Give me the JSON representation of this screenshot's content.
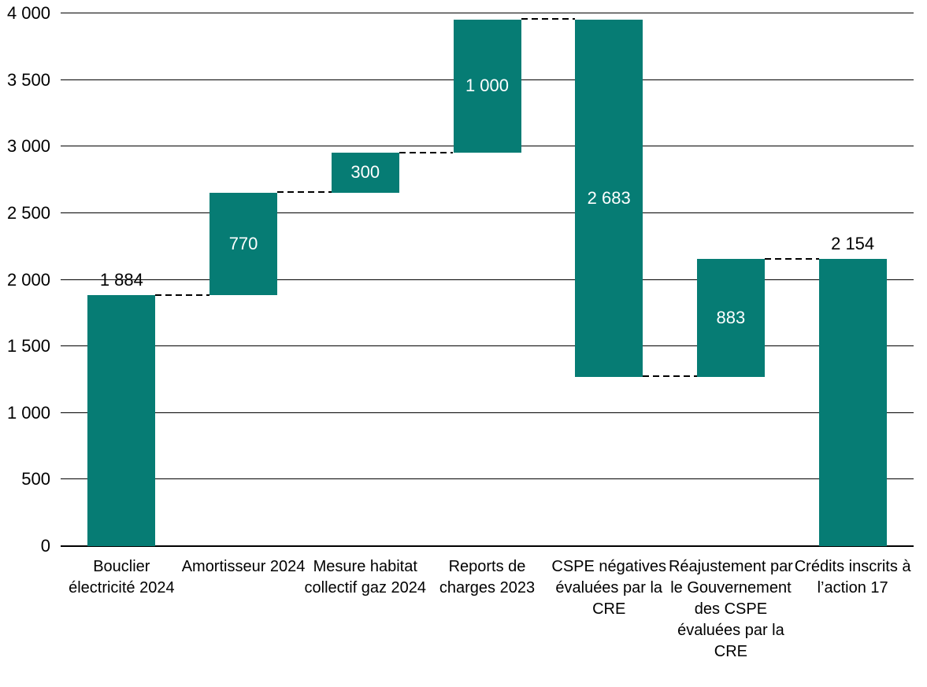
{
  "chart_data": {
    "type": "bar",
    "subtype": "waterfall",
    "title": "",
    "xlabel": "",
    "ylabel": "",
    "ylim": [
      0,
      4000
    ],
    "ytick_step": 500,
    "grid": true,
    "legend": false,
    "yticks": [
      {
        "value": 0,
        "label": "0"
      },
      {
        "value": 500,
        "label": "500"
      },
      {
        "value": 1000,
        "label": "1 000"
      },
      {
        "value": 1500,
        "label": "1 500"
      },
      {
        "value": 2000,
        "label": "2 000"
      },
      {
        "value": 2500,
        "label": "2 500"
      },
      {
        "value": 3000,
        "label": "3 000"
      },
      {
        "value": 3500,
        "label": "3 500"
      },
      {
        "value": 4000,
        "label": "4 000"
      }
    ],
    "categories": [
      "Bouclier électricité 2024",
      "Amortisseur 2024",
      "Mesure habitat collectif gaz 2024",
      "Reports de charges 2023",
      "CSPE négatives évaluées par la CRE",
      "Réajustement par le Gouvernement des CSPE évaluées par la CRE",
      "Crédits inscrits à l’action 17"
    ],
    "bars": [
      {
        "category": "Bouclier électricité 2024",
        "start": 0,
        "end": 1884,
        "delta": 1884,
        "label": "1 884",
        "label_placement": "above"
      },
      {
        "category": "Amortisseur 2024",
        "start": 1884,
        "end": 2654,
        "delta": 770,
        "label": "770",
        "label_placement": "inside"
      },
      {
        "category": "Mesure habitat collectif gaz 2024",
        "start": 2654,
        "end": 2954,
        "delta": 300,
        "label": "300",
        "label_placement": "inside"
      },
      {
        "category": "Reports de charges 2023",
        "start": 2954,
        "end": 3954,
        "delta": 1000,
        "label": "1 000",
        "label_placement": "inside"
      },
      {
        "category": "CSPE négatives évaluées par la CRE",
        "start": 3954,
        "end": 1271,
        "delta": -2683,
        "label": "2 683",
        "label_placement": "inside"
      },
      {
        "category": "Réajustement par le Gouvernement des CSPE évaluées par la CRE",
        "start": 1271,
        "end": 2154,
        "delta": 883,
        "label": "883",
        "label_placement": "inside"
      },
      {
        "category": "Crédits inscrits à l’action 17",
        "start": 0,
        "end": 2154,
        "delta": 2154,
        "label": "2 154",
        "label_placement": "above"
      }
    ],
    "connectors_between_bars": true,
    "connector_style": "dashed"
  },
  "colors": {
    "bar": "#067C74",
    "label_inside": "#FFFFFF",
    "label_outside": "#000000",
    "gridline": "#000000",
    "background": "#FFFFFF"
  }
}
